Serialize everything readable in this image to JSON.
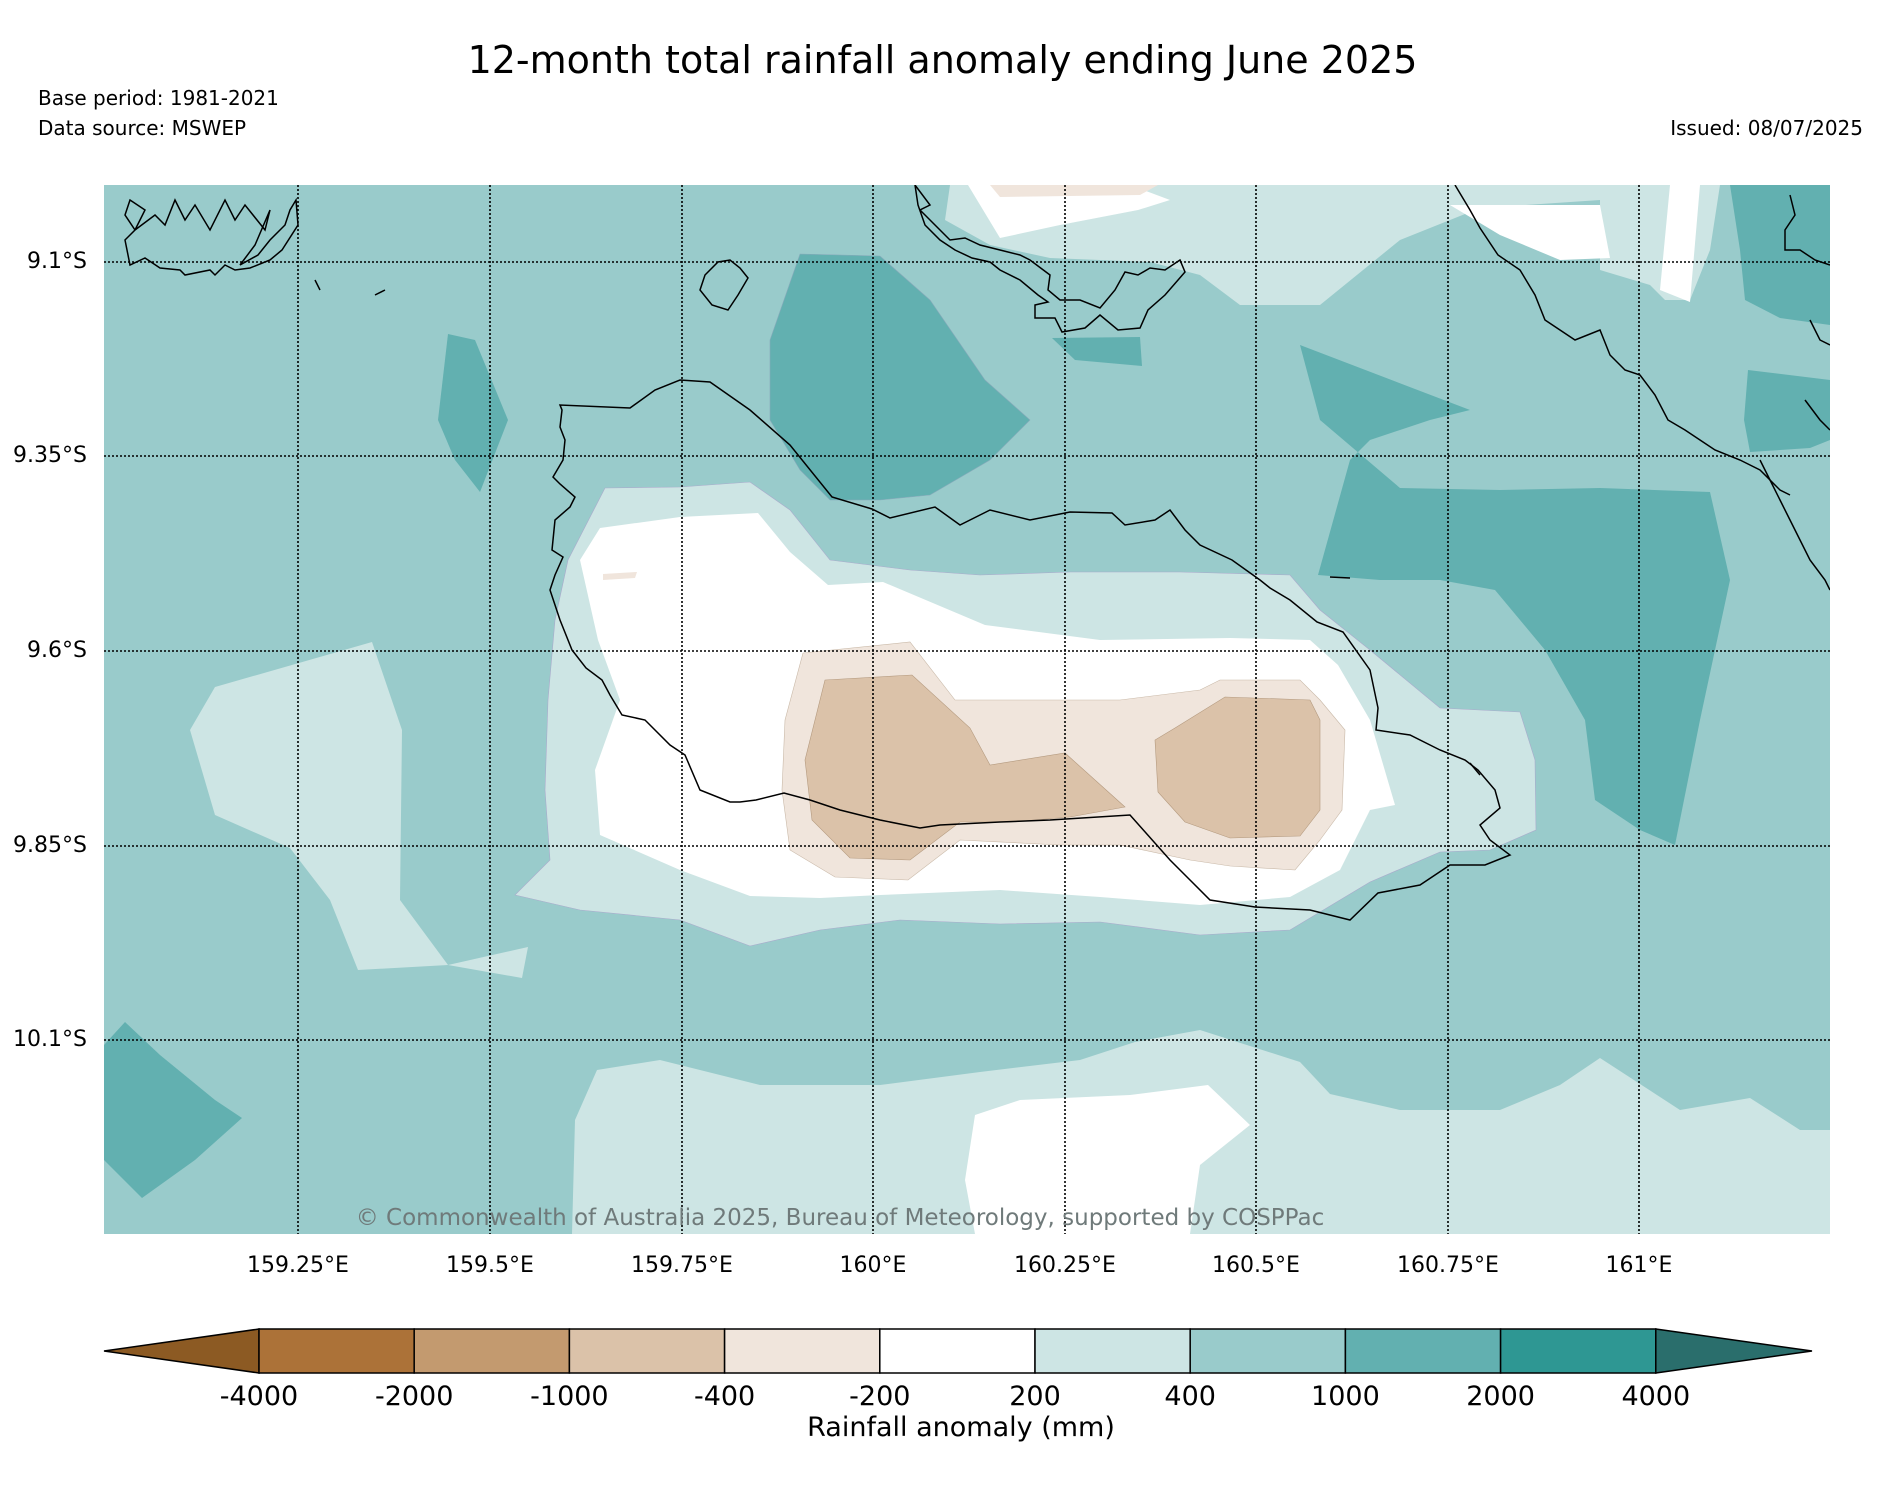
{
  "header": {
    "title": "12-month total rainfall anomaly ending June 2025",
    "base_period": "Base period: 1981-2021",
    "data_source": "Data source: MSWEP",
    "issued": "Issued: 08/07/2025"
  },
  "map": {
    "lat_labels": [
      "9.1°S",
      "9.35°S",
      "9.6°S",
      "9.85°S",
      "10.1°S"
    ],
    "lon_labels": [
      "159.25°E",
      "159.5°E",
      "159.75°E",
      "160°E",
      "160.25°E",
      "160.5°E",
      "160.75°E",
      "161°E"
    ],
    "copyright": "© Commonwealth of Australia 2025, Bureau of Meteorology, supported by COSPPac"
  },
  "colorbar": {
    "label": "Rainfall anomaly (mm)",
    "ticks": [
      "-4000",
      "-2000",
      "-1000",
      "-400",
      "-200",
      "200",
      "400",
      "1000",
      "2000",
      "4000"
    ],
    "colors": [
      "#8c5a23",
      "#ac7238",
      "#c39a6f",
      "#dbc2a9",
      "#f0e5dc",
      "#ffffff",
      "#cde5e4",
      "#99cbcb",
      "#62b0b0",
      "#2e9793",
      "#2a6e6c"
    ]
  }
}
